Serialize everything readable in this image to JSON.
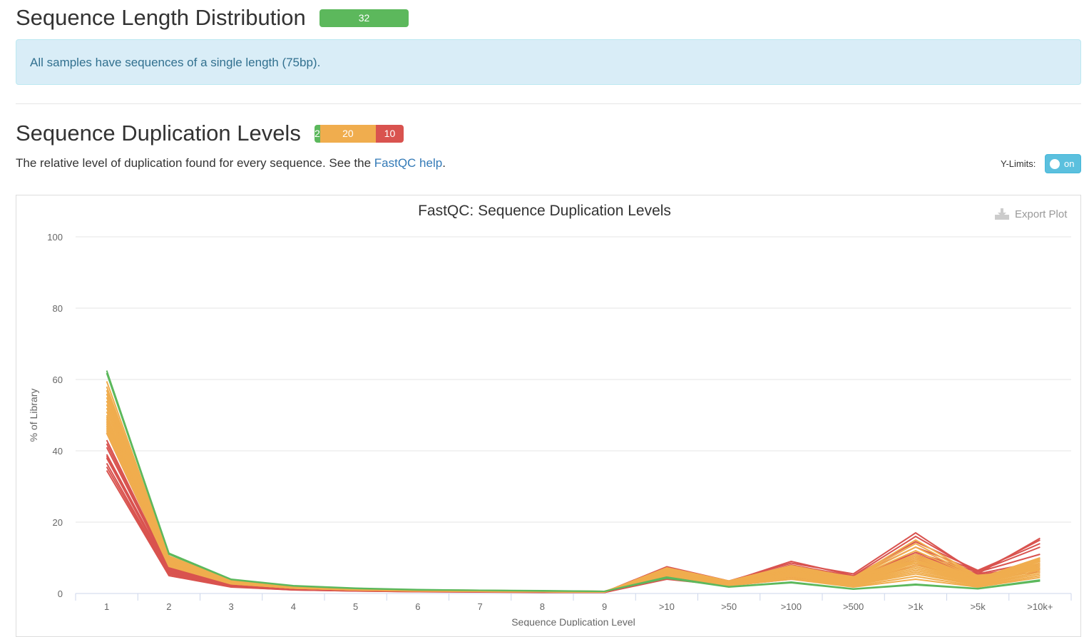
{
  "length_section": {
    "title": "Sequence Length Distribution",
    "status_counts": [
      {
        "label": "32",
        "value": 32,
        "color": "#5cb85c"
      }
    ],
    "alert_text": "All samples have sequences of a single length (75bp)."
  },
  "dup_section": {
    "title": "Sequence Duplication Levels",
    "status_counts": [
      {
        "label": "2",
        "value": 2,
        "color": "#5cb85c"
      },
      {
        "label": "20",
        "value": 20,
        "color": "#f0ad4e"
      },
      {
        "label": "10",
        "value": 10,
        "color": "#d9534f"
      }
    ],
    "description_prefix": "The relative level of duplication found for every sequence. See the ",
    "description_link": "FastQC help",
    "description_suffix": ".",
    "ylimits_label": "Y-Limits:",
    "ylimits_toggle": "on",
    "export_label": "Export Plot"
  },
  "chart_data": {
    "type": "line",
    "title": "FastQC: Sequence Duplication Levels",
    "xlabel": "Sequence Duplication Level",
    "ylabel": "% of Library",
    "ylim": [
      0,
      100
    ],
    "yticks": [
      0,
      20,
      40,
      60,
      80,
      100
    ],
    "categories": [
      "1",
      "2",
      "3",
      "4",
      "5",
      "6",
      "7",
      "8",
      "9",
      ">10",
      ">50",
      ">100",
      ">500",
      ">1k",
      ">5k",
      ">10k+"
    ],
    "grid": true,
    "legend": "none",
    "series_colors": {
      "pass": "#5cb85c",
      "warn": "#f0ad4e",
      "fail": "#d9534f"
    },
    "series": [
      {
        "status": "pass",
        "values": [
          62.5,
          11.3,
          4.0,
          2.2,
          1.5,
          1.1,
          0.9,
          0.8,
          0.6,
          4.3,
          1.8,
          3.0,
          1.2,
          2.4,
          1.3,
          3.5
        ]
      },
      {
        "status": "pass",
        "values": [
          61.8,
          11.0,
          3.9,
          2.1,
          1.4,
          1.0,
          0.9,
          0.7,
          0.6,
          4.6,
          1.9,
          3.2,
          1.3,
          2.6,
          1.4,
          3.8
        ]
      },
      {
        "status": "warn",
        "values": [
          59.5,
          10.5,
          3.8,
          2.0,
          1.4,
          1.0,
          0.9,
          0.7,
          0.6,
          5.0,
          2.2,
          4.0,
          1.8,
          4.0,
          1.8,
          4.5
        ]
      },
      {
        "status": "warn",
        "values": [
          58.0,
          10.2,
          3.7,
          2.0,
          1.4,
          1.0,
          0.8,
          0.7,
          0.6,
          5.3,
          2.4,
          4.4,
          2.0,
          4.8,
          2.0,
          5.0
        ]
      },
      {
        "status": "warn",
        "values": [
          57.0,
          10.0,
          3.6,
          1.9,
          1.3,
          1.0,
          0.8,
          0.7,
          0.6,
          5.5,
          2.5,
          4.8,
          2.3,
          5.5,
          2.3,
          5.5
        ]
      },
      {
        "status": "warn",
        "values": [
          56.0,
          9.8,
          3.6,
          1.9,
          1.3,
          0.9,
          0.8,
          0.7,
          0.5,
          5.6,
          2.6,
          5.0,
          2.5,
          6.0,
          2.5,
          6.0
        ]
      },
      {
        "status": "warn",
        "values": [
          55.0,
          9.6,
          3.5,
          1.8,
          1.3,
          0.9,
          0.8,
          0.7,
          0.5,
          5.8,
          2.7,
          5.3,
          2.7,
          6.5,
          2.8,
          6.5
        ]
      },
      {
        "status": "warn",
        "values": [
          54.0,
          9.4,
          3.4,
          1.8,
          1.2,
          0.9,
          0.8,
          0.6,
          0.5,
          6.0,
          2.8,
          5.6,
          2.9,
          7.0,
          3.0,
          7.0
        ]
      },
      {
        "status": "warn",
        "values": [
          53.0,
          9.2,
          3.3,
          1.8,
          1.2,
          0.9,
          0.7,
          0.6,
          0.5,
          6.1,
          2.9,
          5.9,
          3.1,
          7.5,
          3.2,
          7.5
        ]
      },
      {
        "status": "warn",
        "values": [
          52.0,
          9.0,
          3.2,
          1.7,
          1.2,
          0.9,
          0.7,
          0.6,
          0.5,
          6.2,
          3.0,
          6.1,
          3.3,
          8.0,
          3.4,
          8.0
        ]
      },
      {
        "status": "warn",
        "values": [
          51.0,
          8.8,
          3.1,
          1.7,
          1.2,
          0.8,
          0.7,
          0.6,
          0.5,
          6.3,
          3.0,
          6.3,
          3.5,
          8.5,
          3.6,
          8.5
        ]
      },
      {
        "status": "warn",
        "values": [
          50.0,
          8.6,
          3.0,
          1.7,
          1.1,
          0.8,
          0.7,
          0.6,
          0.5,
          6.4,
          3.1,
          6.5,
          3.7,
          9.0,
          3.8,
          9.0
        ]
      },
      {
        "status": "warn",
        "values": [
          49.5,
          8.5,
          3.0,
          1.6,
          1.1,
          0.8,
          0.7,
          0.6,
          0.5,
          6.5,
          3.1,
          6.6,
          3.8,
          9.5,
          3.9,
          9.2
        ]
      },
      {
        "status": "warn",
        "values": [
          49.0,
          8.4,
          3.0,
          1.6,
          1.1,
          0.8,
          0.7,
          0.6,
          0.5,
          6.6,
          3.2,
          6.8,
          3.9,
          10.0,
          4.0,
          9.5
        ]
      },
      {
        "status": "warn",
        "values": [
          48.5,
          8.3,
          2.9,
          1.6,
          1.1,
          0.8,
          0.7,
          0.5,
          0.5,
          6.7,
          3.2,
          6.9,
          4.0,
          10.5,
          4.1,
          9.8
        ]
      },
      {
        "status": "warn",
        "values": [
          48.0,
          8.2,
          2.9,
          1.6,
          1.1,
          0.8,
          0.7,
          0.5,
          0.5,
          6.8,
          3.3,
          7.0,
          4.1,
          11.0,
          4.2,
          10.0
        ]
      },
      {
        "status": "warn",
        "values": [
          47.5,
          8.1,
          2.9,
          1.6,
          1.1,
          0.8,
          0.7,
          0.5,
          0.4,
          6.9,
          3.3,
          7.2,
          4.2,
          12.0,
          4.3,
          8.5
        ]
      },
      {
        "status": "warn",
        "values": [
          47.0,
          8.0,
          2.8,
          1.5,
          1.1,
          0.8,
          0.6,
          0.5,
          0.4,
          7.0,
          3.4,
          7.4,
          4.3,
          13.0,
          4.5,
          8.0
        ]
      },
      {
        "status": "warn",
        "values": [
          46.5,
          7.9,
          2.8,
          1.5,
          1.0,
          0.8,
          0.6,
          0.5,
          0.4,
          7.1,
          3.4,
          7.6,
          4.4,
          14.0,
          4.7,
          7.5
        ]
      },
      {
        "status": "warn",
        "values": [
          46.0,
          7.8,
          2.8,
          1.5,
          1.0,
          0.8,
          0.6,
          0.5,
          0.4,
          7.2,
          3.5,
          7.8,
          4.5,
          15.0,
          4.9,
          7.0
        ]
      },
      {
        "status": "warn",
        "values": [
          45.5,
          7.7,
          2.7,
          1.5,
          1.0,
          0.7,
          0.6,
          0.5,
          0.4,
          7.0,
          3.3,
          7.5,
          4.6,
          9.0,
          5.0,
          6.8
        ]
      },
      {
        "status": "warn",
        "values": [
          45.0,
          7.6,
          2.7,
          1.5,
          1.0,
          0.7,
          0.6,
          0.5,
          0.4,
          6.8,
          3.2,
          7.2,
          4.7,
          8.5,
          5.1,
          6.5
        ]
      },
      {
        "status": "fail",
        "values": [
          45.0,
          7.5,
          2.6,
          1.4,
          1.0,
          0.7,
          0.6,
          0.5,
          0.4,
          7.5,
          3.5,
          8.5,
          5.5,
          17.0,
          5.5,
          15.5
        ]
      },
      {
        "status": "fail",
        "values": [
          43.0,
          7.2,
          2.5,
          1.4,
          1.0,
          0.7,
          0.6,
          0.5,
          0.4,
          7.2,
          3.3,
          9.0,
          5.0,
          16.0,
          6.0,
          15.0
        ]
      },
      {
        "status": "fail",
        "values": [
          42.0,
          7.0,
          2.4,
          1.3,
          0.9,
          0.7,
          0.6,
          0.5,
          0.4,
          7.0,
          3.2,
          8.0,
          4.8,
          14.5,
          6.5,
          14.0
        ]
      },
      {
        "status": "fail",
        "values": [
          41.0,
          6.8,
          2.3,
          1.3,
          0.9,
          0.7,
          0.6,
          0.5,
          0.4,
          6.5,
          3.0,
          7.5,
          4.5,
          13.0,
          6.2,
          13.0
        ]
      },
      {
        "status": "fail",
        "values": [
          39.0,
          6.5,
          2.2,
          1.2,
          0.9,
          0.6,
          0.5,
          0.4,
          0.4,
          6.0,
          2.8,
          7.0,
          4.2,
          11.5,
          6.0,
          11.0
        ]
      },
      {
        "status": "fail",
        "values": [
          38.5,
          6.3,
          2.2,
          1.2,
          0.8,
          0.6,
          0.5,
          0.4,
          0.3,
          5.5,
          2.6,
          6.0,
          4.0,
          11.0,
          5.5,
          9.0
        ]
      },
      {
        "status": "fail",
        "values": [
          38.0,
          6.0,
          2.1,
          1.1,
          0.8,
          0.6,
          0.5,
          0.4,
          0.3,
          5.0,
          2.5,
          5.5,
          3.8,
          10.5,
          5.2,
          8.0
        ]
      },
      {
        "status": "fail",
        "values": [
          36.5,
          5.7,
          2.0,
          1.1,
          0.8,
          0.6,
          0.5,
          0.4,
          0.3,
          4.5,
          2.4,
          5.0,
          3.5,
          10.0,
          5.0,
          7.5
        ]
      },
      {
        "status": "fail",
        "values": [
          35.5,
          5.4,
          1.9,
          1.0,
          0.7,
          0.5,
          0.4,
          0.4,
          0.3,
          4.2,
          2.3,
          4.5,
          3.0,
          9.5,
          4.8,
          7.0
        ]
      },
      {
        "status": "fail",
        "values": [
          34.5,
          5.0,
          1.8,
          1.0,
          0.7,
          0.5,
          0.4,
          0.3,
          0.3,
          4.0,
          2.2,
          4.0,
          2.8,
          8.0,
          4.5,
          6.0
        ]
      }
    ]
  }
}
